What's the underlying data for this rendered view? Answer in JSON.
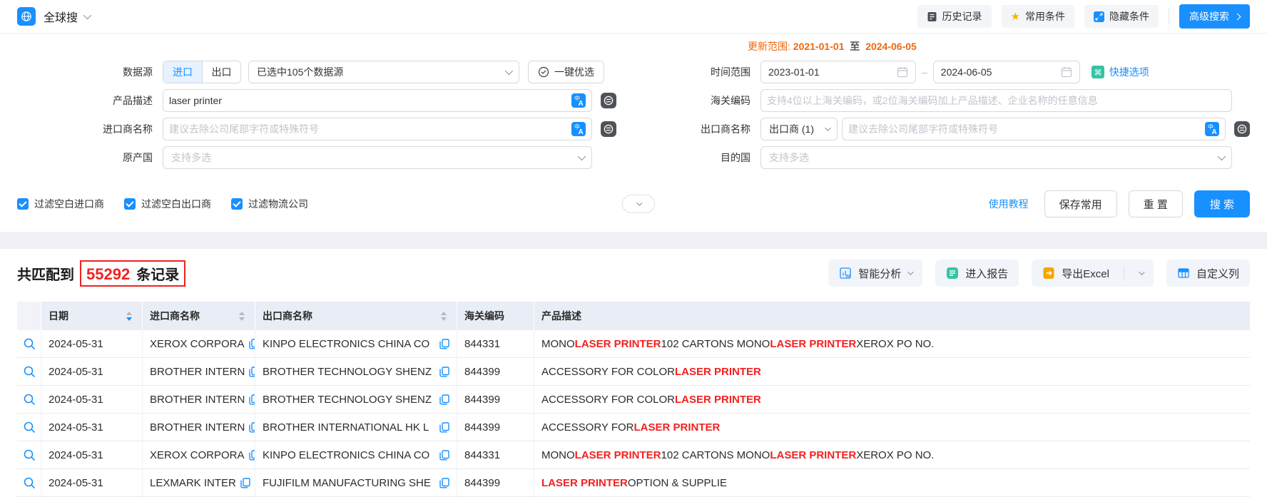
{
  "colors": {
    "primary": "#1890ff",
    "orange": "#f0670f",
    "red": "#f32121",
    "teal": "#35c4a4",
    "star": "#f7b500"
  },
  "icons": {
    "star": "★",
    "command": "⌘",
    "translate": "文A"
  },
  "topbar": {
    "title": "全球搜",
    "history": "历史记录",
    "favorites": "常用条件",
    "hide": "隐藏条件",
    "advanced": "高级搜索"
  },
  "form": {
    "update_range": {
      "label": "更新范围:",
      "start": "2021-01-01",
      "to": "至",
      "end": "2024-06-05"
    },
    "data_source": {
      "label": "数据源",
      "import_label": "进口",
      "export_label": "出口",
      "selected": "已选中105个数据源",
      "quick_pick": "一键优选"
    },
    "time_range": {
      "label": "时间范围",
      "start": "2023-01-01",
      "end": "2024-06-05",
      "quick_options": "快捷选项"
    },
    "product": {
      "label": "产品描述",
      "value": "laser printer"
    },
    "hs": {
      "label": "海关编码",
      "placeholder": "支持4位以上海关编码，或2位海关编码加上产品描述、企业名称的任意信息"
    },
    "importer": {
      "label": "进口商名称",
      "placeholder": "建议去除公司尾部字符或特殊符号"
    },
    "exporter": {
      "label": "出口商名称",
      "select": "出口商 (1)",
      "placeholder": "建议去除公司尾部字符或特殊符号"
    },
    "origin": {
      "label": "原产国",
      "placeholder": "支持多选"
    },
    "destination": {
      "label": "目的国",
      "placeholder": "支持多选"
    },
    "filters": [
      "过滤空白进口商",
      "过滤空白出口商",
      "过滤物流公司"
    ],
    "tutorial": "使用教程",
    "save": "保存常用",
    "reset": "重 置",
    "search": "搜 索"
  },
  "results": {
    "match_prefix": "共匹配到",
    "count": "55292",
    "count_suffix": "条记录",
    "actions": {
      "analysis": "智能分析",
      "report": "进入报告",
      "export": "导出Excel",
      "columns": "自定义列"
    },
    "table": {
      "headers": [
        "日期",
        "进口商名称",
        "出口商名称",
        "海关编码",
        "产品描述"
      ],
      "rows": [
        {
          "date": "2024-05-31",
          "importer": "XEROX CORPORA",
          "exporter": "KINPO ELECTRONICS CHINA CO",
          "hs": "844331",
          "desc": [
            {
              "t": "MONO ",
              "h": false
            },
            {
              "t": "LASER PRINTER",
              "h": true
            },
            {
              "t": " 102 CARTONS MONO ",
              "h": false
            },
            {
              "t": "LASER PRINTER",
              "h": true
            },
            {
              "t": " XEROX PO NO.",
              "h": false
            }
          ]
        },
        {
          "date": "2024-05-31",
          "importer": "BROTHER INTERN",
          "exporter": "BROTHER TECHNOLOGY SHENZ",
          "hs": "844399",
          "desc": [
            {
              "t": "ACCESSORY FOR COLOR ",
              "h": false
            },
            {
              "t": "LASER PRINTER",
              "h": true
            }
          ]
        },
        {
          "date": "2024-05-31",
          "importer": "BROTHER INTERN",
          "exporter": "BROTHER TECHNOLOGY SHENZ",
          "hs": "844399",
          "desc": [
            {
              "t": "ACCESSORY FOR COLOR ",
              "h": false
            },
            {
              "t": "LASER PRINTER",
              "h": true
            }
          ]
        },
        {
          "date": "2024-05-31",
          "importer": "BROTHER INTERN",
          "exporter": "BROTHER INTERNATIONAL HK L",
          "hs": "844399",
          "desc": [
            {
              "t": "ACCESSORY FOR ",
              "h": false
            },
            {
              "t": "LASER PRINTER",
              "h": true
            }
          ]
        },
        {
          "date": "2024-05-31",
          "importer": "XEROX CORPORA",
          "exporter": "KINPO ELECTRONICS CHINA CO",
          "hs": "844331",
          "desc": [
            {
              "t": "MONO ",
              "h": false
            },
            {
              "t": "LASER PRINTER",
              "h": true
            },
            {
              "t": " 102 CARTONS MONO ",
              "h": false
            },
            {
              "t": "LASER PRINTER",
              "h": true
            },
            {
              "t": " XEROX PO NO.",
              "h": false
            }
          ]
        },
        {
          "date": "2024-05-31",
          "importer": "LEXMARK INTER",
          "exporter": "FUJIFILM MANUFACTURING SHE",
          "hs": "844399",
          "desc": [
            {
              "t": "LASER PRINTER",
              "h": true
            },
            {
              "t": " OPTION & SUPPLIE",
              "h": false
            }
          ]
        }
      ]
    }
  }
}
